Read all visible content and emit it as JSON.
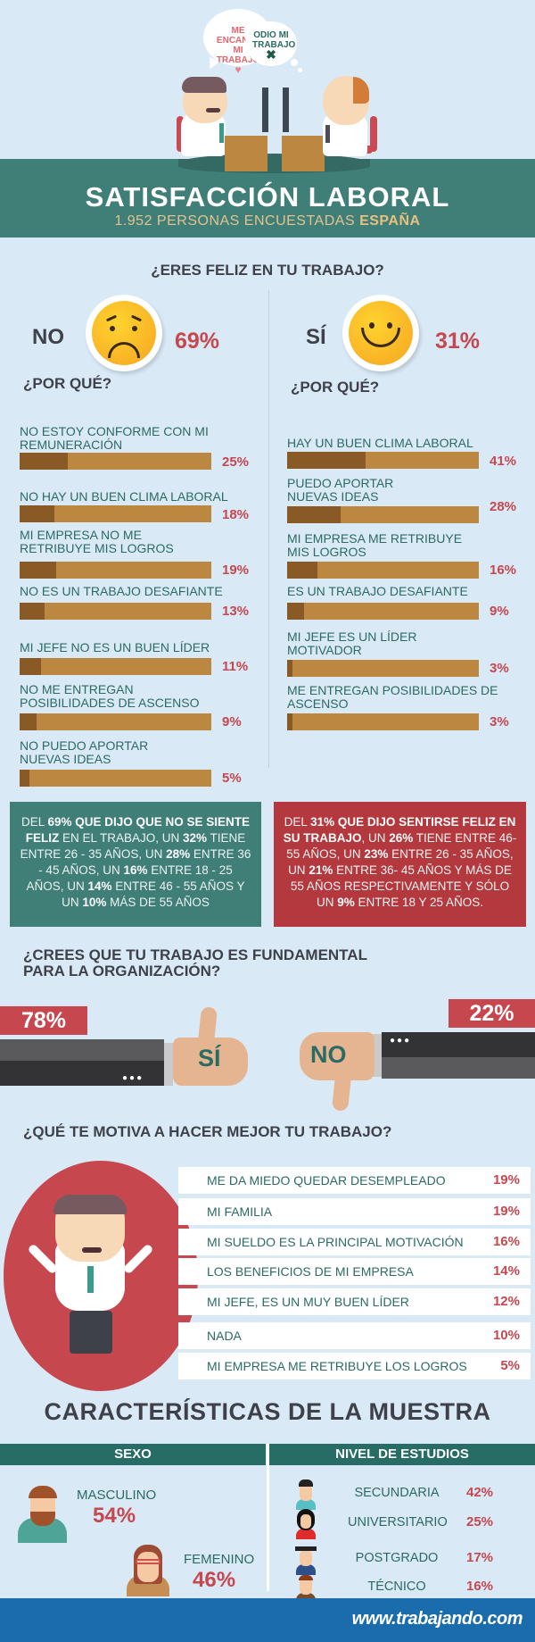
{
  "header": {
    "bubble_left": "ME ENCANTA MI TRABAJO",
    "bubble_right": "ODIO MI TRABAJO",
    "title": "SATISFACCIÓN LABORAL",
    "subtitle_prefix": "1.952 PERSONAS  ENCUESTADAS ",
    "subtitle_country": "ESPAÑA"
  },
  "happy_section": {
    "question": "¿ERES FELIZ EN TU TRABAJO?",
    "no": {
      "label": "NO",
      "pct": "69%",
      "why": "¿POR QUÉ?"
    },
    "yes": {
      "label": "SÍ",
      "pct": "31%",
      "why": "¿POR QUÉ?"
    }
  },
  "colors": {
    "background": "#d9e9f6",
    "teal": "#3f7f78",
    "dark_teal": "#276d65",
    "red": "#c7474f",
    "bar_track": "#bb8741",
    "bar_fill": "#8a5a26",
    "footer_blue": "#1b6cad"
  },
  "chart_data": [
    {
      "type": "bar",
      "title": "¿POR QUÉ? (NO - 69%)",
      "categories": [
        "NO ESTOY CONFORME CON MI REMUNERACIÓN",
        "NO HAY UN BUEN CLIMA LABORAL",
        "MI EMPRESA NO ME RETRIBUYE MIS LOGROS",
        "NO ES UN TRABAJO DESAFIANTE",
        "MI JEFE NO ES UN BUEN LÍDER",
        "NO ME ENTREGAN POSIBILIDADES DE ASCENSO",
        "NO PUEDO APORTAR NUEVAS IDEAS"
      ],
      "values": [
        25,
        18,
        19,
        13,
        11,
        9,
        5
      ],
      "labels": [
        "25%",
        "18%",
        "19%",
        "13%",
        "11%",
        "9%",
        "5%"
      ],
      "ylim": [
        0,
        100
      ]
    },
    {
      "type": "bar",
      "title": "¿POR QUÉ? (SÍ - 31%)",
      "categories": [
        "HAY UN BUEN CLIMA LABORAL",
        "PUEDO APORTAR NUEVAS IDEAS",
        "MI EMPRESA ME RETRIBUYE MIS LOGROS",
        "ES UN TRABAJO DESAFIANTE",
        "MI JEFE ES UN LÍDER MOTIVADOR",
        "ME ENTREGAN POSIBILIDADES DE ASCENSO"
      ],
      "values": [
        41,
        28,
        16,
        9,
        3,
        3
      ],
      "labels": [
        "41%",
        "28%",
        "16%",
        "9%",
        "3%",
        "3%"
      ],
      "ylim": [
        0,
        100
      ]
    },
    {
      "type": "pie",
      "title": "¿ERES FELIZ EN TU TRABAJO?",
      "categories": [
        "NO",
        "SÍ"
      ],
      "values": [
        69,
        31
      ]
    },
    {
      "type": "pie",
      "title": "¿CREES QUE TU TRABAJO ES FUNDAMENTAL PARA LA ORGANIZACIÓN?",
      "categories": [
        "SÍ",
        "NO"
      ],
      "values": [
        78,
        22
      ]
    },
    {
      "type": "table",
      "title": "¿QUÉ TE MOTIVA A HACER MEJOR TU TRABAJO?",
      "categories": [
        "ME DA MIEDO QUEDAR DESEMPLEADO",
        "MI FAMILIA",
        "MI SUELDO ES LA PRINCIPAL MOTIVACIÓN",
        "LOS BENEFICIOS DE MI EMPRESA",
        "MI JEFE, ES UN MUY BUEN LÍDER",
        "NADA",
        "MI EMPRESA ME RETRIBUYE LOS LOGROS"
      ],
      "values": [
        19,
        19,
        16,
        14,
        12,
        10,
        5
      ]
    },
    {
      "type": "table",
      "title": "SEXO",
      "categories": [
        "MASCULINO",
        "FEMENINO"
      ],
      "values": [
        54,
        46
      ]
    },
    {
      "type": "table",
      "title": "NIVEL DE ESTUDIOS",
      "categories": [
        "SECUNDARIA",
        "UNIVERSITARIO",
        "POSTGRADO",
        "TÉCNICO"
      ],
      "values": [
        42,
        25,
        17,
        16
      ]
    }
  ],
  "no_reasons": [
    {
      "label": "NO ESTOY CONFORME CON MI REMUNERACIÓN",
      "pct": "25%",
      "value": 25
    },
    {
      "label": "NO HAY UN BUEN CLIMA LABORAL",
      "pct": "18%",
      "value": 18
    },
    {
      "label": "MI EMPRESA NO ME RETRIBUYE MIS LOGROS",
      "pct": "19%",
      "value": 19
    },
    {
      "label": "NO ES UN TRABAJO DESAFIANTE",
      "pct": "13%",
      "value": 13
    },
    {
      "label": "MI JEFE NO ES UN BUEN LÍDER",
      "pct": "11%",
      "value": 11
    },
    {
      "label": "NO ME ENTREGAN POSIBILIDADES DE ASCENSO",
      "pct": "9%",
      "value": 9
    },
    {
      "label": "NO PUEDO APORTAR NUEVAS IDEAS",
      "pct": "5%",
      "value": 5
    }
  ],
  "yes_reasons": [
    {
      "label": "HAY UN BUEN CLIMA LABORAL",
      "pct": "41%",
      "value": 41
    },
    {
      "label": "PUEDO APORTAR NUEVAS IDEAS",
      "pct": "28%",
      "value": 28
    },
    {
      "label": "MI EMPRESA ME RETRIBUYE MIS LOGROS",
      "pct": "16%",
      "value": 16
    },
    {
      "label": "ES UN TRABAJO DESAFIANTE",
      "pct": "9%",
      "value": 9
    },
    {
      "label": "MI JEFE ES UN LÍDER MOTIVADOR",
      "pct": "3%",
      "value": 3
    },
    {
      "label": "ME ENTREGAN POSIBILIDADES DE ASCENSO",
      "pct": "3%",
      "value": 3
    }
  ],
  "info_boxes": {
    "no_parts": [
      [
        "DEL ",
        false
      ],
      [
        "69% QUE DIJO QUE NO SE SIENTE FELIZ",
        true
      ],
      [
        " EN EL TRABAJO,  UN ",
        false
      ],
      [
        "32%",
        true
      ],
      [
        "  TIENE ENTRE 26 - 35 AÑOS, UN ",
        false
      ],
      [
        "28%",
        true
      ],
      [
        "  ENTRE 36 - 45 AÑOS, UN ",
        false
      ],
      [
        "16%",
        true
      ],
      [
        " ENTRE 18 - 25 AÑOS, UN ",
        false
      ],
      [
        "14%",
        true
      ],
      [
        "  ENTRE 46 - 55 AÑOS Y UN ",
        false
      ],
      [
        "10%",
        true
      ],
      [
        "  MÁS DE 55 AÑOS",
        false
      ]
    ],
    "yes_parts": [
      [
        "DEL ",
        false
      ],
      [
        "31% QUE DIJO SENTIRSE FELIZ EN SU TRABAJO",
        true
      ],
      [
        ", UN ",
        false
      ],
      [
        "26%",
        true
      ],
      [
        " TIENE ENTRE 46-55 AÑOS, UN ",
        false
      ],
      [
        "23%",
        true
      ],
      [
        " ENTRE 26 - 35 AÑOS, UN ",
        false
      ],
      [
        "21%",
        true
      ],
      [
        " ENTRE 36- 45 AÑOS Y MÁS DE 55 AÑOS RESPECTIVAMENTE Y SÓLO UN ",
        false
      ],
      [
        "9%",
        true
      ],
      [
        " ENTRE 18 Y 25 AÑOS.",
        false
      ]
    ]
  },
  "fundamental": {
    "question_line1": "¿CREES QUE TU TRABAJO ES FUNDAMENTAL",
    "question_line2": "PARA LA ORGANIZACIÓN?",
    "yes_pct": "78%",
    "yes_label": "SÍ",
    "no_pct": "22%",
    "no_label": "NO"
  },
  "motivation": {
    "question": "¿QUÉ TE MOTIVA A HACER MEJOR TU TRABAJO?",
    "items": [
      {
        "label": "ME DA MIEDO QUEDAR DESEMPLEADO",
        "pct": "19%"
      },
      {
        "label": "MI FAMILIA",
        "pct": "19%"
      },
      {
        "label": "MI SUELDO ES LA PRINCIPAL MOTIVACIÓN",
        "pct": "16%"
      },
      {
        "label": "LOS BENEFICIOS DE MI EMPRESA",
        "pct": "14%"
      },
      {
        "label": "MI JEFE, ES UN MUY BUEN LÍDER",
        "pct": "12%"
      },
      {
        "label": "NADA",
        "pct": "10%"
      },
      {
        "label": "MI EMPRESA ME RETRIBUYE LOS LOGROS",
        "pct": "5%"
      }
    ]
  },
  "sample": {
    "title": "CARACTERÍSTICAS DE LA MUESTRA",
    "sex_header": "SEXO",
    "edu_header": "NIVEL DE ESTUDIOS",
    "male": {
      "label": "MASCULINO",
      "pct": "54%"
    },
    "female": {
      "label": "FEMENINO",
      "pct": "46%"
    },
    "education": [
      {
        "label": "SECUNDARIA",
        "pct": "42%"
      },
      {
        "label": "UNIVERSITARIO",
        "pct": "25%"
      },
      {
        "label": "POSTGRADO",
        "pct": "17%"
      },
      {
        "label": "TÉCNICO",
        "pct": "16%"
      }
    ]
  },
  "footer": {
    "brand": "www.trabajando.com"
  }
}
